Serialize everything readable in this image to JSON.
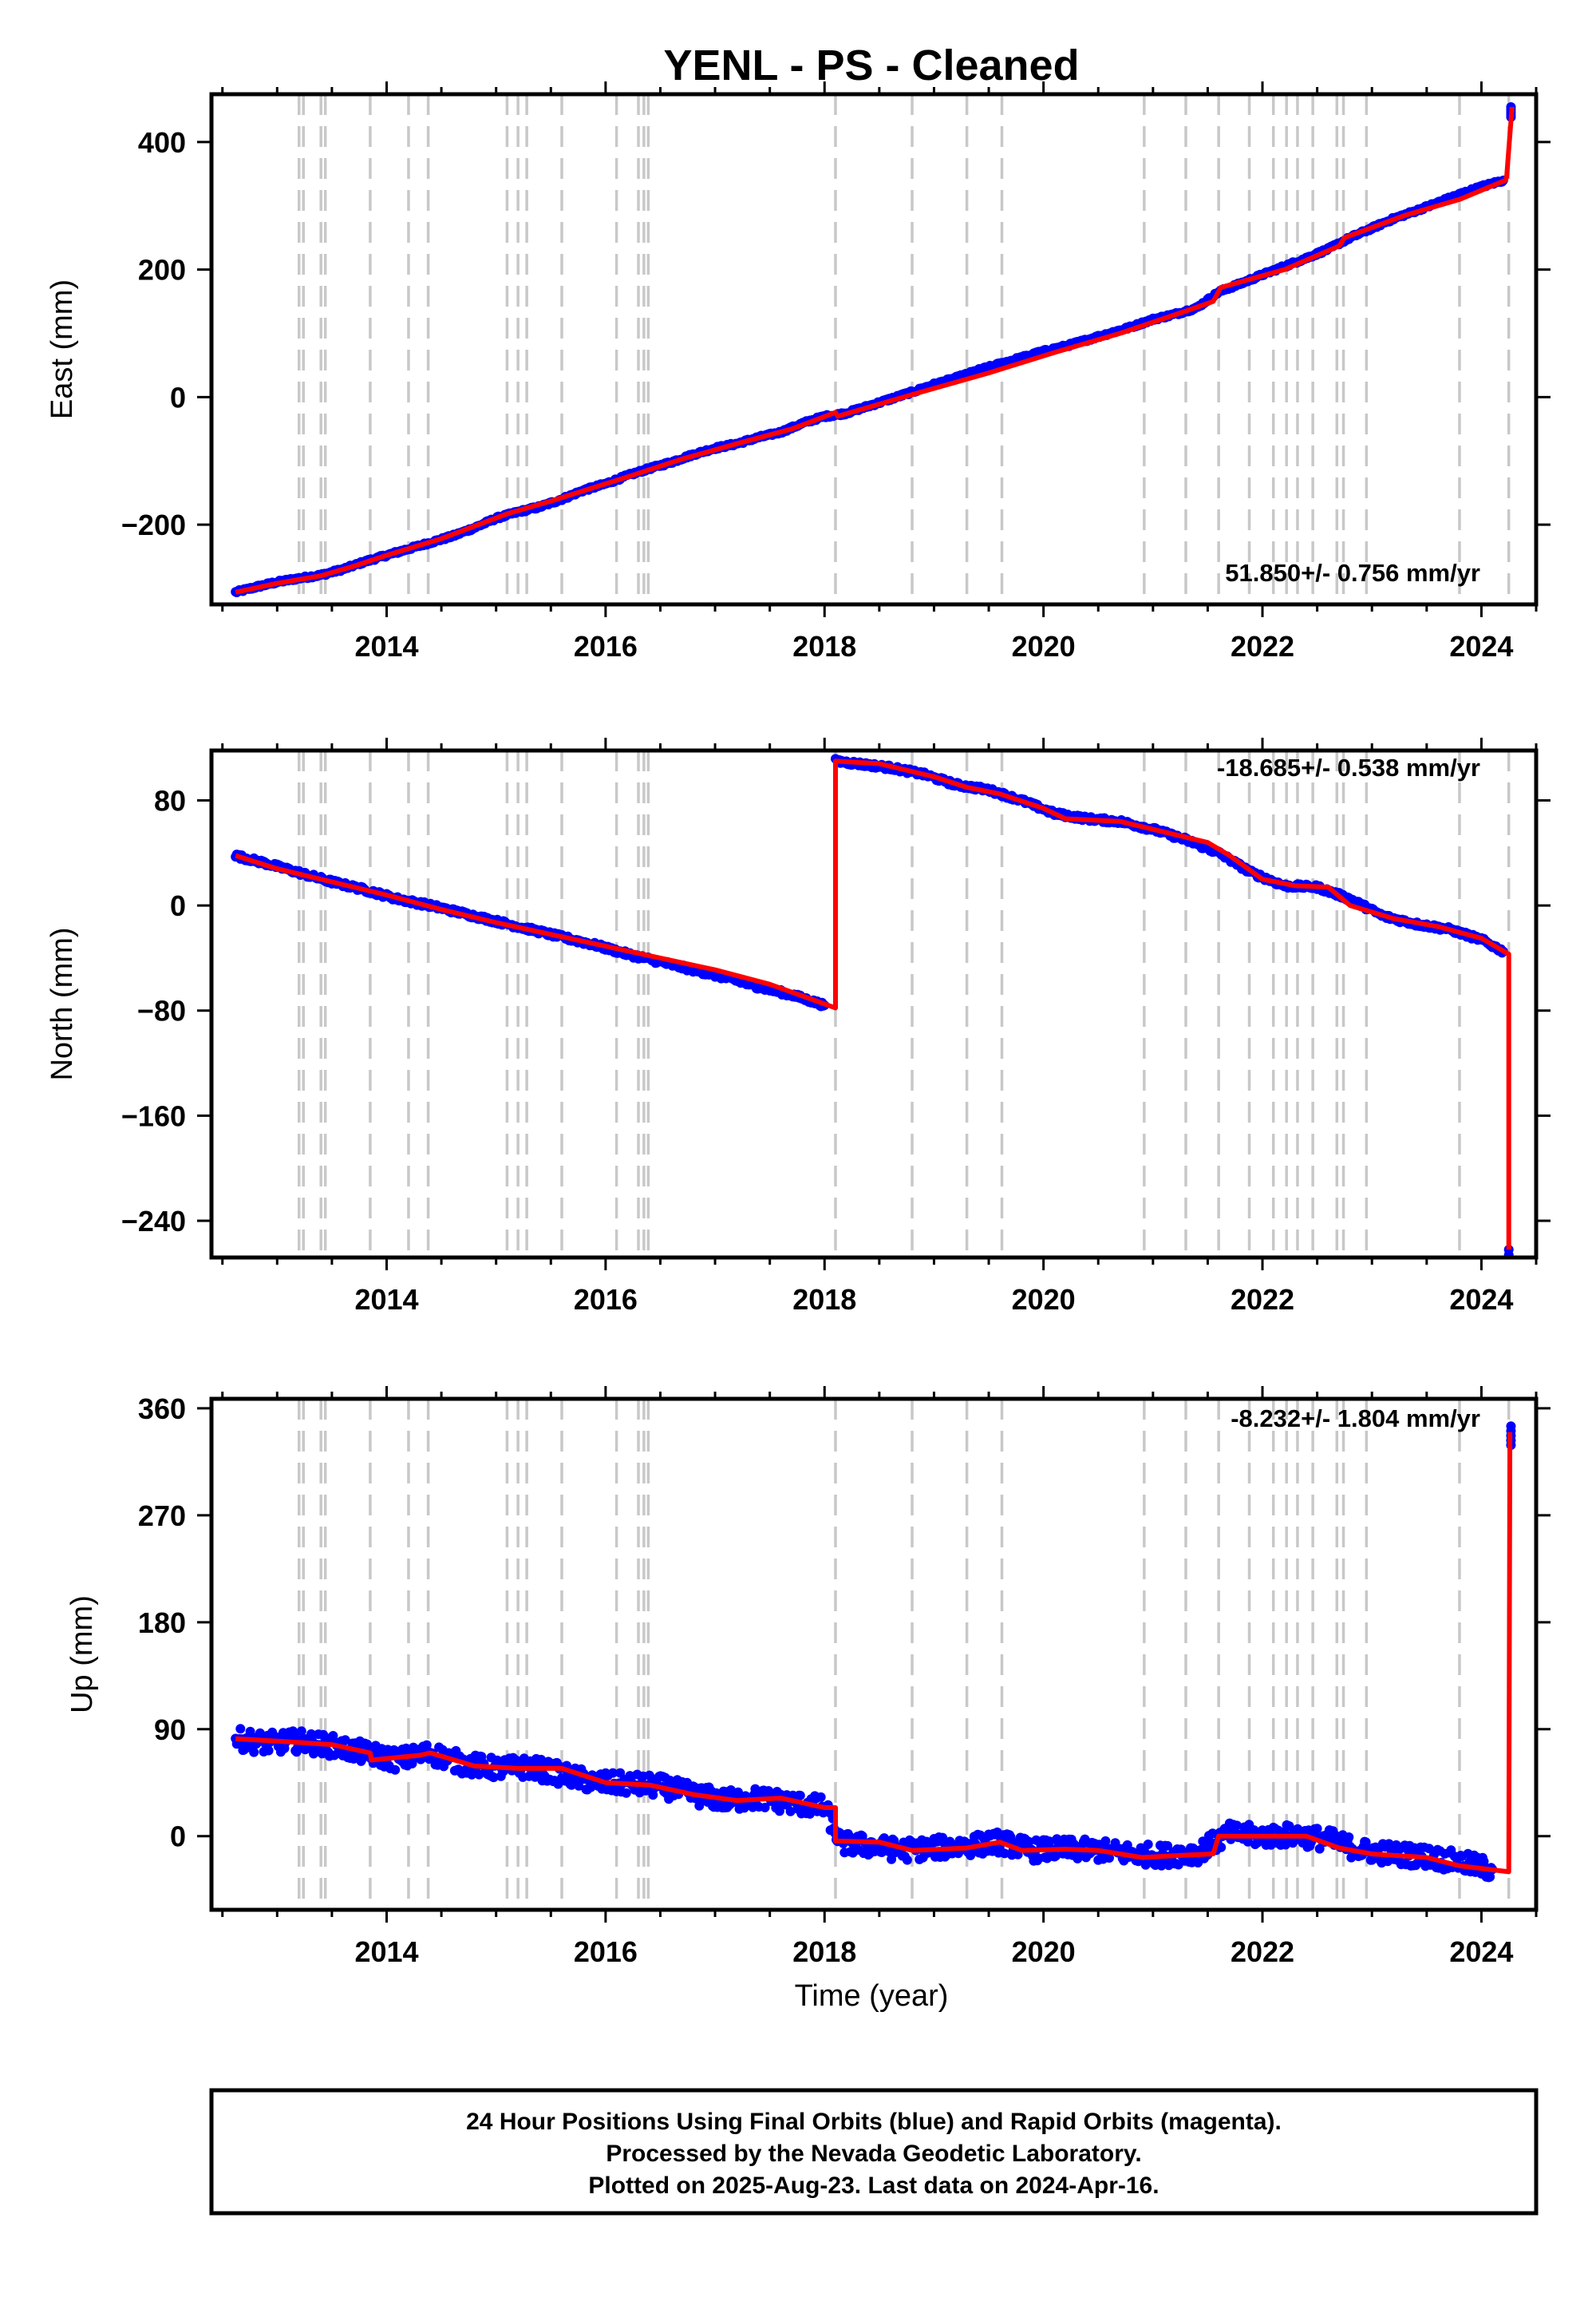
{
  "figure": {
    "title": "YENL  - PS - Cleaned",
    "footer_lines": [
      "24 Hour Positions Using Final Orbits (blue) and Rapid Orbits (magenta).",
      "Processed by the Nevada Geodetic Laboratory.",
      "Plotted on 2025-Aug-23. Last data on 2024-Apr-16."
    ],
    "colors": {
      "data": "#0000ff",
      "model": "#ff0000",
      "event_lines": "#c8c8c8"
    }
  },
  "chart_data": [
    {
      "type": "scatter",
      "component": "east",
      "ylabel": "East (mm)",
      "xlabel": "",
      "xlim": [
        2012.4,
        2024.5
      ],
      "ylim": [
        -325,
        475
      ],
      "xticks": [
        "2014",
        "2016",
        "2018",
        "2020",
        "2022",
        "2024"
      ],
      "yticks": [
        "400",
        "200",
        "0",
        "−200"
      ],
      "rate_label": "51.850+/- 0.756 mm/yr",
      "model_breakpoints": [
        [
          2012.62,
          -306
        ],
        [
          2013.4,
          -280
        ],
        [
          2014.0,
          -248
        ],
        [
          2015.1,
          -183
        ],
        [
          2016.2,
          -125
        ],
        [
          2017.2,
          -73
        ],
        [
          2018.1,
          -24
        ],
        [
          2018.12,
          -30
        ],
        [
          2020.1,
          70
        ],
        [
          2021.3,
          135
        ],
        [
          2021.6,
          165
        ],
        [
          2022.7,
          237
        ],
        [
          2022.75,
          250
        ],
        [
          2024.2,
          340
        ],
        [
          2024.25,
          345
        ],
        [
          2024.26,
          455
        ]
      ],
      "model_series": {
        "name": "",
        "x": [
          2012.62,
          2013.0,
          2013.4,
          2013.7,
          2014.0,
          2014.5,
          2015.1,
          2015.5,
          2016.2,
          2016.7,
          2017.2,
          2017.7,
          2018.1,
          2018.12,
          2018.8,
          2019.5,
          2020.1,
          2020.7,
          2021.3,
          2021.55,
          2021.62,
          2022.2,
          2022.7,
          2022.75,
          2023.3,
          2023.8,
          2024.22,
          2024.23,
          2024.28
        ],
        "y": [
          -306,
          -292,
          -280,
          -265,
          -248,
          -222,
          -183,
          -163,
          -125,
          -97,
          -73,
          -50,
          -24,
          -30,
          4,
          38,
          70,
          100,
          135,
          150,
          172,
          200,
          237,
          250,
          285,
          310,
          340,
          345,
          455
        ]
      },
      "observations": {
        "name": "",
        "x": [
          2012.62,
          2012.8,
          2013.0,
          2013.2,
          2013.4,
          2013.6,
          2013.8,
          2014.0,
          2014.2,
          2014.4,
          2014.6,
          2014.8,
          2015.0,
          2015.2,
          2015.4,
          2015.6,
          2015.8,
          2016.0,
          2016.2,
          2016.4,
          2016.6,
          2016.8,
          2017.0,
          2017.2,
          2017.4,
          2017.6,
          2017.8,
          2018.0,
          2018.1,
          2018.2,
          2018.4,
          2018.6,
          2018.8,
          2019.0,
          2019.2,
          2019.4,
          2019.6,
          2019.8,
          2020.0,
          2020.2,
          2020.4,
          2020.6,
          2020.8,
          2021.0,
          2021.2,
          2021.4,
          2021.6,
          2021.8,
          2022.0,
          2022.2,
          2022.4,
          2022.6,
          2022.8,
          2023.0,
          2023.2,
          2023.4,
          2023.6,
          2023.8,
          2024.0,
          2024.2,
          2024.27
        ],
        "y": [
          -306,
          -298,
          -290,
          -284,
          -279,
          -270,
          -258,
          -248,
          -238,
          -228,
          -218,
          -205,
          -190,
          -180,
          -172,
          -160,
          -146,
          -136,
          -123,
          -112,
          -102,
          -90,
          -80,
          -73,
          -63,
          -55,
          -41,
          -30,
          -28,
          -25,
          -14,
          -3,
          8,
          20,
          30,
          42,
          52,
          62,
          72,
          80,
          90,
          100,
          110,
          122,
          130,
          140,
          165,
          178,
          192,
          205,
          218,
          232,
          250,
          265,
          280,
          292,
          305,
          318,
          330,
          340,
          455
        ]
      }
    },
    {
      "type": "scatter",
      "component": "north",
      "ylabel": "North (mm)",
      "xlabel": "",
      "xlim": [
        2012.4,
        2024.5
      ],
      "ylim": [
        -268,
        118
      ],
      "xticks": [
        "2014",
        "2016",
        "2018",
        "2020",
        "2022",
        "2024"
      ],
      "yticks": [
        "80",
        "0",
        "−80",
        "−160",
        "−240"
      ],
      "rate_label": "-18.685+/- 0.538 mm/yr",
      "model_series": {
        "name": "",
        "x": [
          2012.62,
          2013.0,
          2013.5,
          2014.0,
          2014.5,
          2015.0,
          2015.5,
          2016.0,
          2016.5,
          2017.0,
          2017.5,
          2018.1,
          2018.1,
          2018.5,
          2019.0,
          2019.3,
          2019.6,
          2020.0,
          2020.2,
          2020.7,
          2021.0,
          2021.5,
          2021.7,
          2022.0,
          2022.3,
          2022.6,
          2022.8,
          2023.2,
          2023.6,
          2024.0,
          2024.25,
          2024.25
        ],
        "y": [
          38,
          28,
          18,
          8,
          -3,
          -13,
          -22,
          -31,
          -40,
          -49,
          -60,
          -78,
          110,
          108,
          98,
          90,
          85,
          74,
          66,
          64,
          58,
          48,
          38,
          20,
          15,
          14,
          0,
          -10,
          -16,
          -25,
          -37,
          -262
        ]
      },
      "observations": {
        "name": "",
        "x": [
          2012.62,
          2012.9,
          2013.2,
          2013.5,
          2013.8,
          2014.1,
          2014.4,
          2014.7,
          2015.0,
          2015.3,
          2015.6,
          2015.9,
          2016.2,
          2016.5,
          2016.8,
          2017.1,
          2017.4,
          2017.7,
          2018.0,
          2018.1,
          2018.3,
          2018.6,
          2018.9,
          2019.2,
          2019.5,
          2019.8,
          2020.1,
          2020.4,
          2020.7,
          2021.0,
          2021.3,
          2021.6,
          2021.9,
          2022.2,
          2022.5,
          2022.8,
          2023.1,
          2023.4,
          2023.7,
          2024.0,
          2024.2,
          2024.25
        ],
        "y": [
          38,
          32,
          25,
          18,
          12,
          5,
          0,
          -6,
          -12,
          -18,
          -24,
          -30,
          -37,
          -43,
          -49,
          -55,
          -62,
          -68,
          -76,
          110,
          108,
          105,
          100,
          92,
          88,
          80,
          70,
          66,
          64,
          58,
          50,
          40,
          25,
          15,
          14,
          5,
          -8,
          -14,
          -18,
          -26,
          -35,
          -262
        ]
      }
    },
    {
      "type": "scatter",
      "component": "up",
      "ylabel": "Up (mm)",
      "xlabel": "Time (year)",
      "xlim": [
        2012.4,
        2024.5
      ],
      "ylim": [
        -62,
        368
      ],
      "xticks": [
        "2014",
        "2016",
        "2018",
        "2020",
        "2022",
        "2024"
      ],
      "yticks": [
        "360",
        "270",
        "180",
        "90",
        "0"
      ],
      "rate_label": "-8.232+/- 1.804 mm/yr",
      "model_series": {
        "name": "",
        "x": [
          2012.62,
          2013.0,
          2013.5,
          2013.85,
          2013.86,
          2014.3,
          2014.4,
          2014.8,
          2015.2,
          2015.6,
          2016.0,
          2016.4,
          2016.8,
          2017.2,
          2017.6,
          2018.0,
          2018.1,
          2018.1,
          2018.5,
          2018.8,
          2019.3,
          2019.6,
          2019.8,
          2020.2,
          2020.5,
          2020.9,
          2021.3,
          2021.55,
          2021.6,
          2022.0,
          2022.4,
          2022.7,
          2023.0,
          2023.5,
          2023.8,
          2024.25,
          2024.26
        ],
        "y": [
          82,
          80,
          77,
          70,
          64,
          68,
          70,
          59,
          57,
          57,
          45,
          43,
          35,
          30,
          32,
          24,
          24,
          -4,
          -5,
          -12,
          -10,
          -5,
          -12,
          -11,
          -12,
          -18,
          -16,
          -15,
          0,
          0,
          0,
          -10,
          -15,
          -18,
          -25,
          -30,
          340
        ]
      },
      "observations": {
        "name": "",
        "x": [
          2012.62,
          2012.9,
          2013.2,
          2013.5,
          2013.8,
          2014.1,
          2014.4,
          2014.7,
          2015.0,
          2015.3,
          2015.6,
          2015.9,
          2016.2,
          2016.5,
          2016.8,
          2017.1,
          2017.4,
          2017.7,
          2018.0,
          2018.15,
          2018.4,
          2018.7,
          2019.0,
          2019.3,
          2019.6,
          2019.9,
          2020.2,
          2020.5,
          2020.8,
          2021.1,
          2021.4,
          2021.7,
          2022.0,
          2022.3,
          2022.6,
          2022.9,
          2023.2,
          2023.5,
          2023.8,
          2024.1,
          2024.27
        ],
        "y": [
          82,
          78,
          80,
          76,
          70,
          64,
          70,
          61,
          57,
          58,
          52,
          45,
          44,
          42,
          35,
          30,
          32,
          28,
          24,
          -6,
          -8,
          -12,
          -10,
          -8,
          -5,
          -12,
          -11,
          -12,
          -15,
          -16,
          -14,
          2,
          0,
          1,
          -3,
          -12,
          -15,
          -17,
          -22,
          -28,
          345
        ]
      }
    }
  ],
  "event_lines_years": [
    2013.2,
    2013.24,
    2013.4,
    2013.44,
    2013.85,
    2014.2,
    2014.38,
    2015.1,
    2015.2,
    2015.28,
    2015.6,
    2016.1,
    2016.3,
    2016.35,
    2016.39,
    2018.1,
    2018.8,
    2019.3,
    2019.62,
    2020.92,
    2021.3,
    2021.6,
    2021.88,
    2022.1,
    2022.22,
    2022.32,
    2022.46,
    2022.68,
    2022.74,
    2022.95,
    2023.8,
    2024.25
  ]
}
